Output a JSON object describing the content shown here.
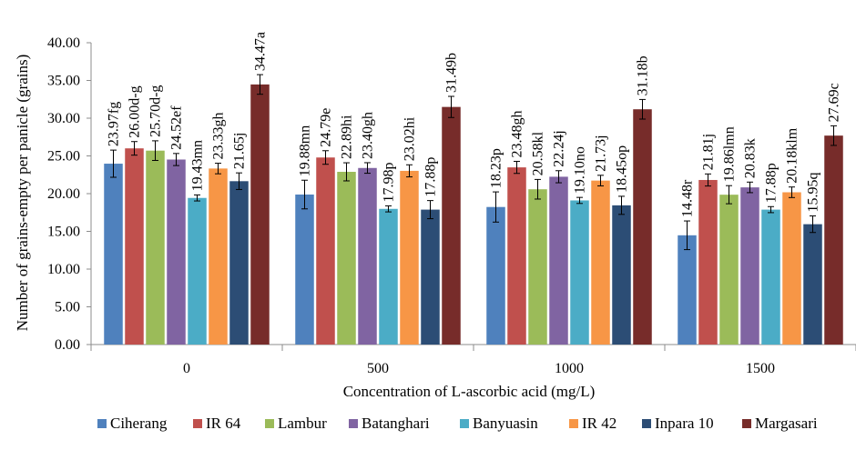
{
  "chart_data": {
    "type": "bar",
    "title": "",
    "xlabel": "Concentration of L-ascorbic acid (mg/L)",
    "ylabel": "Number of grains-empty per panicle (grains)",
    "ylim": [
      0,
      40
    ],
    "yticks": [
      "0.00",
      "5.00",
      "10.00",
      "15.00",
      "20.00",
      "25.00",
      "30.00",
      "35.00",
      "40.00"
    ],
    "categories": [
      "0",
      "500",
      "1000",
      "1500"
    ],
    "legend_position": "bottom",
    "grid": false,
    "series": [
      {
        "name": "Ciherang",
        "color": "#4F81BD",
        "values": [
          23.97,
          19.88,
          18.23,
          14.48
        ],
        "errors": [
          1.8,
          1.9,
          2.0,
          1.9
        ],
        "labels": [
          "23.97fg",
          "19.88mn",
          "18.23p",
          "14.48r"
        ]
      },
      {
        "name": "IR 64",
        "color": "#C0504D",
        "values": [
          26.0,
          24.79,
          23.48,
          21.81
        ],
        "errors": [
          0.9,
          0.9,
          0.8,
          0.8
        ],
        "labels": [
          "26.00d-g",
          "24.79e",
          "23.48gh",
          "21.81j"
        ]
      },
      {
        "name": "Lambur",
        "color": "#9BBB59",
        "values": [
          25.7,
          22.89,
          20.58,
          19.86
        ],
        "errors": [
          1.3,
          1.2,
          1.3,
          1.2
        ],
        "labels": [
          "25.70d-g",
          "22.89hi",
          "20.58kl",
          "19.86lmn"
        ]
      },
      {
        "name": "Batanghari",
        "color": "#8064A2",
        "values": [
          24.52,
          23.4,
          22.24,
          20.83
        ],
        "errors": [
          0.8,
          0.7,
          0.8,
          0.7
        ],
        "labels": [
          "24.52ef",
          "23.40gh",
          "22.24j",
          "20.83k"
        ]
      },
      {
        "name": "Banyuasin",
        "color": "#4BACC6",
        "values": [
          19.43,
          17.98,
          19.1,
          17.88
        ],
        "errors": [
          0.4,
          0.4,
          0.4,
          0.4
        ],
        "labels": [
          "19.43mn",
          "17.98p",
          "19.10no",
          "17.88p"
        ]
      },
      {
        "name": "IR 42",
        "color": "#F79646",
        "values": [
          23.33,
          23.02,
          21.73,
          20.18
        ],
        "errors": [
          0.7,
          0.8,
          0.7,
          0.7
        ],
        "labels": [
          "23.33gh",
          "23.02hi",
          "21.73j",
          "20.18klm"
        ]
      },
      {
        "name": "Inpara 10",
        "color": "#2C4D75",
        "values": [
          21.65,
          17.88,
          18.45,
          15.95
        ],
        "errors": [
          1.1,
          1.2,
          1.2,
          1.1
        ],
        "labels": [
          "21.65j",
          "17.88p",
          "18.45op",
          "15.95q"
        ]
      },
      {
        "name": "Margasari",
        "color": "#772C2A",
        "values": [
          34.47,
          31.49,
          31.18,
          27.69
        ],
        "errors": [
          1.3,
          1.4,
          1.3,
          1.3
        ],
        "labels": [
          "34.47a",
          "31.49b",
          "31.18b",
          "27.69c"
        ]
      }
    ]
  }
}
